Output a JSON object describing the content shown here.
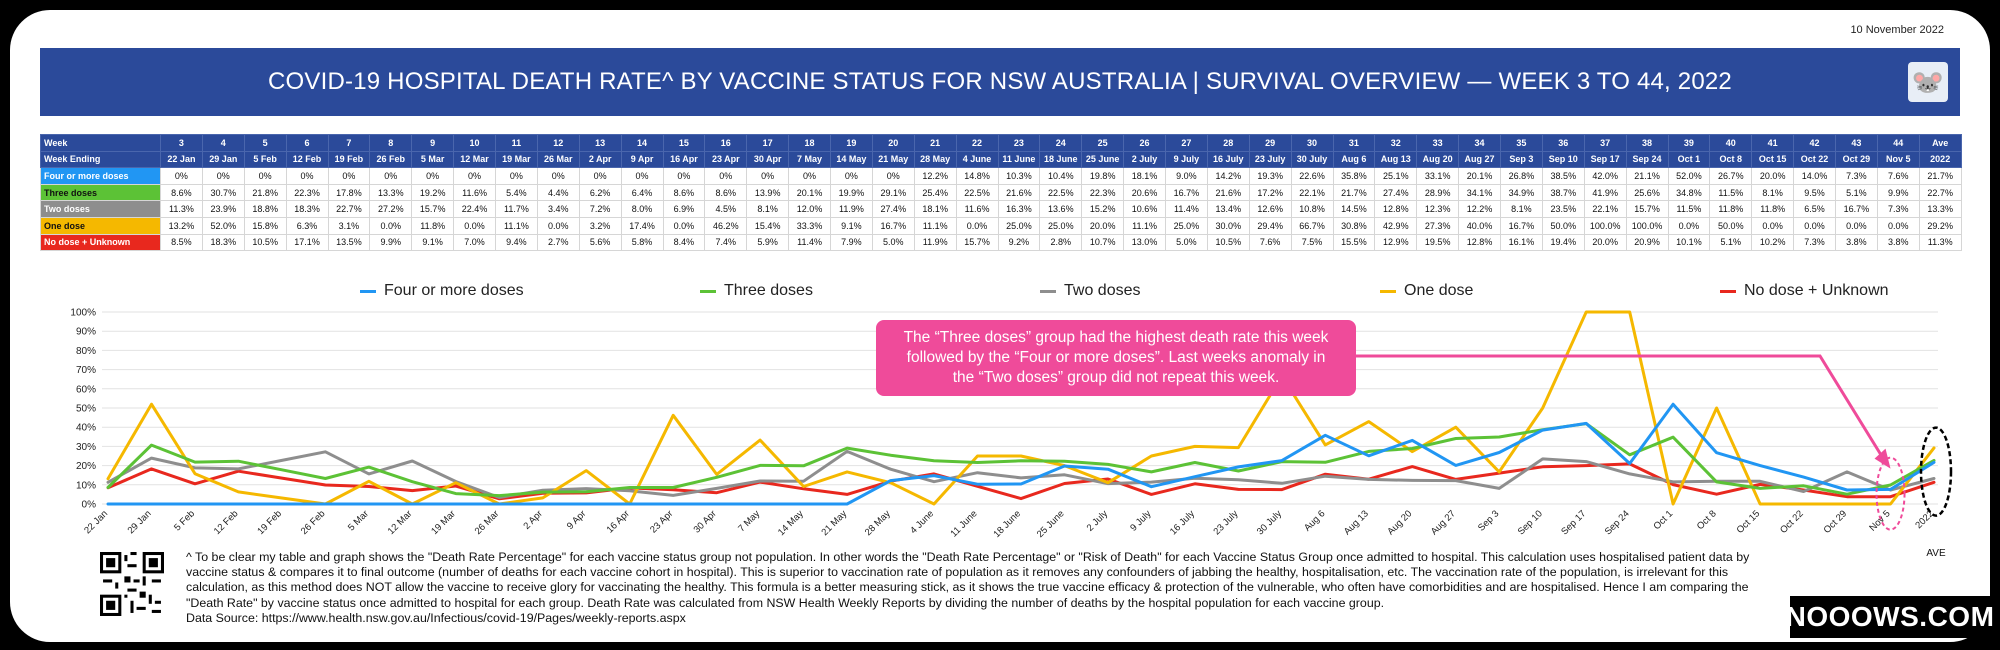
{
  "date": "10 November 2022",
  "title": "COVID-19 HOSPITAL DEATH RATE^ BY VACCINE STATUS FOR NSW AUSTRALIA  |  SURVIVAL OVERVIEW — WEEK 3 TO 44, 2022",
  "table": {
    "row_labels": [
      "Week",
      "Week Ending"
    ],
    "weeks": [
      "3",
      "4",
      "5",
      "6",
      "7",
      "8",
      "9",
      "10",
      "11",
      "12",
      "13",
      "14",
      "15",
      "16",
      "17",
      "18",
      "19",
      "20",
      "21",
      "22",
      "23",
      "24",
      "25",
      "26",
      "27",
      "28",
      "29",
      "30",
      "31",
      "32",
      "33",
      "34",
      "35",
      "36",
      "37",
      "38",
      "39",
      "40",
      "41",
      "42",
      "43",
      "44",
      "Ave"
    ],
    "week_ending": [
      "22 Jan",
      "29 Jan",
      "5 Feb",
      "12 Feb",
      "19 Feb",
      "26 Feb",
      "5 Mar",
      "12 Mar",
      "19 Mar",
      "26 Mar",
      "2 Apr",
      "9 Apr",
      "16 Apr",
      "23 Apr",
      "30 Apr",
      "7 May",
      "14 May",
      "21 May",
      "28 May",
      "4 June",
      "11 June",
      "18 June",
      "25 June",
      "2 July",
      "9 July",
      "16 July",
      "23 July",
      "30 July",
      "Aug 6",
      "Aug 13",
      "Aug 20",
      "Aug 27",
      "Sep 3",
      "Sep 10",
      "Sep 17",
      "Sep 24",
      "Oct 1",
      "Oct 8",
      "Oct 15",
      "Oct 22",
      "Oct 29",
      "Nov 5",
      "2022"
    ],
    "groups": [
      {
        "label": "Four or more doses",
        "color": "#2196f3",
        "values": [
          "0%",
          "0%",
          "0%",
          "0%",
          "0%",
          "0%",
          "0%",
          "0%",
          "0%",
          "0%",
          "0%",
          "0%",
          "0%",
          "0%",
          "0%",
          "0%",
          "0%",
          "0%",
          "12.2%",
          "14.8%",
          "10.3%",
          "10.4%",
          "19.8%",
          "18.1%",
          "9.0%",
          "14.2%",
          "19.3%",
          "22.6%",
          "35.8%",
          "25.1%",
          "33.1%",
          "20.1%",
          "26.8%",
          "38.5%",
          "42.0%",
          "21.1%",
          "52.0%",
          "26.7%",
          "20.0%",
          "14.0%",
          "7.3%",
          "7.6%",
          "21.7%"
        ]
      },
      {
        "label": "Three doses",
        "color": "#5cc236",
        "values": [
          "8.6%",
          "30.7%",
          "21.8%",
          "22.3%",
          "17.8%",
          "13.3%",
          "19.2%",
          "11.6%",
          "5.4%",
          "4.4%",
          "6.2%",
          "6.4%",
          "8.6%",
          "8.6%",
          "13.9%",
          "20.1%",
          "19.9%",
          "29.1%",
          "25.4%",
          "22.5%",
          "21.6%",
          "22.5%",
          "22.3%",
          "20.6%",
          "16.7%",
          "21.6%",
          "17.2%",
          "22.1%",
          "21.7%",
          "27.4%",
          "28.9%",
          "34.1%",
          "34.9%",
          "38.7%",
          "41.9%",
          "25.6%",
          "34.8%",
          "11.5%",
          "8.1%",
          "9.5%",
          "5.1%",
          "9.9%",
          "22.7%"
        ]
      },
      {
        "label": "Two doses",
        "color": "#8e8e8e",
        "values": [
          "11.3%",
          "23.9%",
          "18.8%",
          "18.3%",
          "22.7%",
          "27.2%",
          "15.7%",
          "22.4%",
          "11.7%",
          "3.4%",
          "7.2%",
          "8.0%",
          "6.9%",
          "4.5%",
          "8.1%",
          "12.0%",
          "11.9%",
          "27.4%",
          "18.1%",
          "11.6%",
          "16.3%",
          "13.6%",
          "15.2%",
          "10.6%",
          "11.4%",
          "13.4%",
          "12.6%",
          "10.8%",
          "14.5%",
          "12.8%",
          "12.3%",
          "12.2%",
          "8.1%",
          "23.5%",
          "22.1%",
          "15.7%",
          "11.5%",
          "11.8%",
          "11.8%",
          "6.5%",
          "16.7%",
          "7.3%",
          "13.3%"
        ]
      },
      {
        "label": "One dose",
        "color": "#f5b800",
        "values": [
          "13.2%",
          "52.0%",
          "15.8%",
          "6.3%",
          "3.1%",
          "0.0%",
          "11.8%",
          "0.0%",
          "11.1%",
          "0.0%",
          "3.2%",
          "17.4%",
          "0.0%",
          "46.2%",
          "15.4%",
          "33.3%",
          "9.1%",
          "16.7%",
          "11.1%",
          "0.0%",
          "25.0%",
          "25.0%",
          "20.0%",
          "11.1%",
          "25.0%",
          "30.0%",
          "29.4%",
          "66.7%",
          "30.8%",
          "42.9%",
          "27.3%",
          "40.0%",
          "16.7%",
          "50.0%",
          "100.0%",
          "100.0%",
          "0.0%",
          "50.0%",
          "0.0%",
          "0.0%",
          "0.0%",
          "0.0%",
          "29.2%"
        ]
      },
      {
        "label": "No dose + Unknown",
        "color": "#e8281e",
        "values": [
          "8.5%",
          "18.3%",
          "10.5%",
          "17.1%",
          "13.5%",
          "9.9%",
          "9.1%",
          "7.0%",
          "9.4%",
          "2.7%",
          "5.6%",
          "5.8%",
          "8.4%",
          "7.4%",
          "5.9%",
          "11.4%",
          "7.9%",
          "5.0%",
          "11.9%",
          "15.7%",
          "9.2%",
          "2.8%",
          "10.7%",
          "13.0%",
          "5.0%",
          "10.5%",
          "7.6%",
          "7.5%",
          "15.5%",
          "12.9%",
          "19.5%",
          "12.8%",
          "16.1%",
          "19.4%",
          "20.0%",
          "20.9%",
          "10.1%",
          "5.1%",
          "10.2%",
          "7.3%",
          "3.8%",
          "3.8%",
          "11.3%"
        ]
      }
    ]
  },
  "legend": [
    "Four or more doses",
    "Three doses",
    "Two doses",
    "One dose",
    "No dose + Unknown"
  ],
  "callout": {
    "line1": "The “Three doses” group had the highest death rate this week",
    "line2": "followed by the “Four or more doses”. Last weeks anomaly in",
    "line3": "the “Two doses” group did not repeat this week."
  },
  "ave_label": "AVE",
  "footnote": "^ To be clear my table and graph shows the \"Death Rate Percentage\" for each vaccine status group not population. In other words the \"Death Rate Percentage\" or \"Risk of Death\" for each Vaccine Status Group once admitted to hospital. This calculation uses hospitalised patient data by vaccine status & compares it to final outcome (number of deaths for each vaccine cohort in hospital). This is superior to vaccination rate of population as it removes any confounders of jabbing the healthy, hospitalisation, etc. The vaccination rate of the population, is irrelevant for this calculation, as this method does NOT allow the vaccine to receive glory for vaccinating the healthy. This formula is a better measuring stick, as it shows the true vaccine efficacy & protection of the vulnerable, who often have comorbidities and are hospitalised. Hence I am comparing the \"Death Rate\" by vaccine status once admitted to hospital for each group. Death Rate was calculated from NSW Health Weekly Reports by dividing the number of deaths by the hospital population for each vaccine group.",
  "source": "Data Source: https://www.health.nsw.gov.au/Infectious/covid-19/Pages/weekly-reports.aspx",
  "brand": "NOOOWS.COM",
  "chart_data": {
    "type": "line",
    "x": [
      "22 Jan",
      "29 Jan",
      "5 Feb",
      "12 Feb",
      "19 Feb",
      "26 Feb",
      "5 Mar",
      "12 Mar",
      "19 Mar",
      "26 Mar",
      "2 Apr",
      "9 Apr",
      "16 Apr",
      "23 Apr",
      "30 Apr",
      "7 May",
      "14 May",
      "21 May",
      "28 May",
      "4 June",
      "11 June",
      "18 June",
      "25 June",
      "2 July",
      "9 July",
      "16 July",
      "23 July",
      "30 July",
      "Aug 6",
      "Aug 13",
      "Aug 20",
      "Aug 27",
      "Sep 3",
      "Sep 10",
      "Sep 17",
      "Sep 24",
      "Oct 1",
      "Oct 8",
      "Oct 15",
      "Oct 22",
      "Oct 29",
      "Nov 5",
      "2022"
    ],
    "ylim": [
      0,
      100
    ],
    "yticks": [
      "0%",
      "10%",
      "20%",
      "30%",
      "40%",
      "50%",
      "60%",
      "70%",
      "80%",
      "90%",
      "100%"
    ],
    "grid": true,
    "legend_position": "top",
    "series": [
      {
        "name": "Four or more doses",
        "color": "#2196f3",
        "values": [
          0,
          0,
          0,
          0,
          0,
          0,
          0,
          0,
          0,
          0,
          0,
          0,
          0,
          0,
          0,
          0,
          0,
          0,
          12.2,
          14.8,
          10.3,
          10.4,
          19.8,
          18.1,
          9.0,
          14.2,
          19.3,
          22.6,
          35.8,
          25.1,
          33.1,
          20.1,
          26.8,
          38.5,
          42.0,
          21.1,
          52.0,
          26.7,
          20.0,
          14.0,
          7.3,
          7.6,
          21.7
        ]
      },
      {
        "name": "Three doses",
        "color": "#5cc236",
        "values": [
          8.6,
          30.7,
          21.8,
          22.3,
          17.8,
          13.3,
          19.2,
          11.6,
          5.4,
          4.4,
          6.2,
          6.4,
          8.6,
          8.6,
          13.9,
          20.1,
          19.9,
          29.1,
          25.4,
          22.5,
          21.6,
          22.5,
          22.3,
          20.6,
          16.7,
          21.6,
          17.2,
          22.1,
          21.7,
          27.4,
          28.9,
          34.1,
          34.9,
          38.7,
          41.9,
          25.6,
          34.8,
          11.5,
          8.1,
          9.5,
          5.1,
          9.9,
          22.7
        ]
      },
      {
        "name": "Two doses",
        "color": "#8e8e8e",
        "values": [
          11.3,
          23.9,
          18.8,
          18.3,
          22.7,
          27.2,
          15.7,
          22.4,
          11.7,
          3.4,
          7.2,
          8.0,
          6.9,
          4.5,
          8.1,
          12.0,
          11.9,
          27.4,
          18.1,
          11.6,
          16.3,
          13.6,
          15.2,
          10.6,
          11.4,
          13.4,
          12.6,
          10.8,
          14.5,
          12.8,
          12.3,
          12.2,
          8.1,
          23.5,
          22.1,
          15.7,
          11.5,
          11.8,
          11.8,
          6.5,
          16.7,
          7.3,
          13.3
        ]
      },
      {
        "name": "One dose",
        "color": "#f5b800",
        "values": [
          13.2,
          52.0,
          15.8,
          6.3,
          3.1,
          0.0,
          11.8,
          0.0,
          11.1,
          0.0,
          3.2,
          17.4,
          0.0,
          46.2,
          15.4,
          33.3,
          9.1,
          16.7,
          11.1,
          0.0,
          25.0,
          25.0,
          20.0,
          11.1,
          25.0,
          30.0,
          29.4,
          66.7,
          30.8,
          42.9,
          27.3,
          40.0,
          16.7,
          50.0,
          100.0,
          100.0,
          0.0,
          50.0,
          0.0,
          0.0,
          0.0,
          0.0,
          29.2
        ]
      },
      {
        "name": "No dose + Unknown",
        "color": "#e8281e",
        "values": [
          8.5,
          18.3,
          10.5,
          17.1,
          13.5,
          9.9,
          9.1,
          7.0,
          9.4,
          2.7,
          5.6,
          5.8,
          8.4,
          7.4,
          5.9,
          11.4,
          7.9,
          5.0,
          11.9,
          15.7,
          9.2,
          2.8,
          10.7,
          13.0,
          5.0,
          10.5,
          7.6,
          7.5,
          15.5,
          12.9,
          19.5,
          12.8,
          16.1,
          19.4,
          20.0,
          20.9,
          10.1,
          5.1,
          10.2,
          7.3,
          3.8,
          3.8,
          11.3
        ]
      }
    ]
  }
}
